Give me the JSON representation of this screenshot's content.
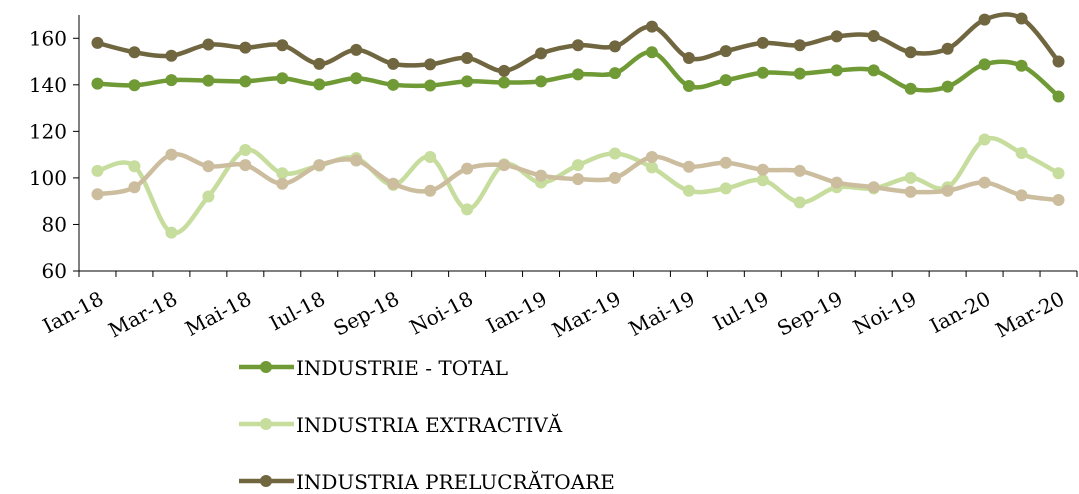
{
  "chart_data": {
    "type": "line",
    "title": "",
    "xlabel": "",
    "ylabel": "",
    "ylim": [
      60,
      170
    ],
    "yticks": [
      60,
      80,
      100,
      120,
      140,
      160
    ],
    "grid": false,
    "legend_position": "bottom",
    "x": [
      "Ian-18",
      "Feb-18",
      "Mar-18",
      "Apr-18",
      "Mai-18",
      "Iun-18",
      "Iul-18",
      "Aug-18",
      "Sep-18",
      "Oct-18",
      "Noi-18",
      "Dec-18",
      "Ian-19",
      "Feb-19",
      "Mar-19",
      "Apr-19",
      "Mai-19",
      "Iun-19",
      "Iul-19",
      "Aug-19",
      "Sep-19",
      "Oct-19",
      "Noi-19",
      "Dec-19",
      "Ian-20",
      "Feb-20",
      "Mar-20"
    ],
    "x_tick_labels": [
      "Ian-18",
      "Mar-18",
      "Mai-18",
      "Iul-18",
      "Sep-18",
      "Noi-18",
      "Ian-19",
      "Mar-19",
      "Mai-19",
      "Iul-19",
      "Sep-19",
      "Noi-19",
      "Ian-20",
      "Mar-20"
    ],
    "series": [
      {
        "name": "INDUSTRIE - TOTAL",
        "color": "#6f9a35",
        "values": [
          140.5,
          139.8,
          142,
          141.8,
          141.5,
          142.8,
          140.2,
          142.8,
          140,
          139.7,
          141.5,
          141,
          141.5,
          144.5,
          145,
          154,
          139.5,
          142,
          145.2,
          144.8,
          146.2,
          146.2,
          138.3,
          139.2,
          148.8,
          148.2,
          135
        ]
      },
      {
        "name": "INDUSTRIA EXTRACTIVĂ",
        "color": "#c6dd9e",
        "values": [
          103,
          105,
          76.5,
          92,
          112,
          102,
          105.3,
          108.5,
          97,
          109,
          86.5,
          105.8,
          98,
          105.5,
          110.5,
          104.5,
          94.5,
          95.5,
          99,
          89.5,
          96,
          95.5,
          100,
          96,
          116.5,
          110.7,
          102
        ]
      },
      {
        "name": "",
        "color": "#cbbd9e",
        "values": [
          93,
          96,
          110,
          105,
          105.5,
          97.5,
          105.5,
          107.5,
          97.5,
          94.5,
          104,
          105.5,
          101,
          99.5,
          100,
          109,
          104.8,
          106.5,
          103.5,
          103,
          98,
          96,
          94,
          94.5,
          98,
          92.5,
          90.5
        ]
      },
      {
        "name": "INDUSTRIA PRELUCRĂTOARE",
        "color": "#706640",
        "values": [
          158,
          154,
          152.5,
          157.3,
          156,
          157,
          149,
          155,
          149,
          148.8,
          151.5,
          146,
          153.5,
          157,
          156.5,
          165,
          151.5,
          154.5,
          158,
          157,
          160.8,
          161,
          154,
          155.5,
          168,
          168.5,
          150
        ]
      }
    ]
  }
}
